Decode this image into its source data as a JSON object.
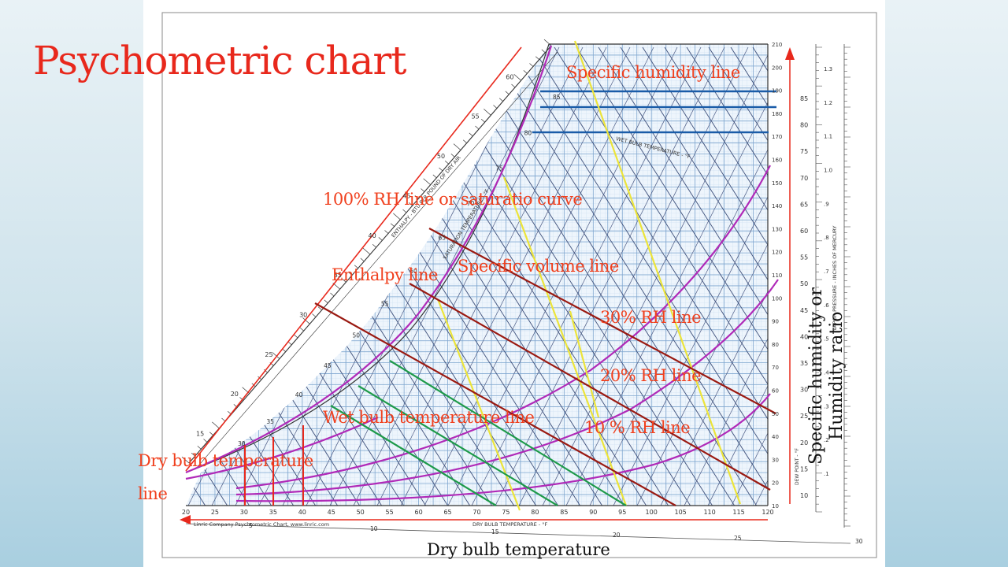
{
  "title": "Psychometric chart",
  "chart": {
    "scale_credit": "Linric Company Psychrometric Chart, www.linric.com",
    "dry_bulb_scale": "DRY BULB TEMPERATURE - °F",
    "enthalpy_scale": "ENTHALPY - BTU PER POUND OF DRY AIR",
    "saturation_scale": "SATURATION TEMPERATURE - °F",
    "wet_bulb_scale": "WET BULB TEMPERATURE - °F",
    "vapor_pressure_scale": "VAPOR PRESSURE - INCHES OF MERCURY",
    "dew_point_scale": "DEW POINT - °F",
    "dry_bulb_ticks": [
      "20",
      "25",
      "30",
      "35",
      "40",
      "45",
      "50",
      "55",
      "60",
      "65",
      "70",
      "75",
      "80",
      "85",
      "90",
      "95",
      "100",
      "105",
      "110",
      "115",
      "120"
    ],
    "right_ticks": [
      "10",
      "20",
      "30",
      "40",
      "50",
      "60",
      "70",
      "80",
      "90",
      "100",
      "110",
      "120",
      "130",
      "140",
      "150",
      "160",
      "170",
      "180",
      "190",
      "200",
      "210"
    ],
    "dew_ticks": [
      "10",
      "15",
      "20",
      "25",
      "30",
      "35",
      "40",
      "45",
      "50",
      "55",
      "60",
      "65",
      "70",
      "75",
      "80",
      "85"
    ],
    "vp_ticks": [
      ".1",
      ".2",
      ".3",
      ".4",
      ".5",
      ".6",
      ".7",
      ".8",
      ".9",
      "1.0",
      "1.1",
      "1.2",
      "1.3"
    ],
    "enthalpy_ticks": [
      "15",
      "20",
      "25",
      "30",
      "35",
      "40",
      "45",
      "50",
      "55",
      "60"
    ],
    "saturation_ticks": [
      "30",
      "35",
      "40",
      "45",
      "50",
      "55",
      "60",
      "65",
      "70",
      "75",
      "80",
      "85"
    ],
    "bottom_enthalpy_ticks": [
      "5",
      "10",
      "15",
      "20",
      "25",
      "30"
    ]
  },
  "annotations": {
    "specific_humidity_line": "Specific humidity  line",
    "rh100_line": "100% RH  line or saturatio curve",
    "enthalpy_line": "Enthalpy  line",
    "specific_volume_line": "Specific volume line",
    "rh30_line": "30% RH  line",
    "rh20_line": "20% RH  line",
    "rh10_line": "10 % RH  line",
    "wet_bulb_line": "Wet bulb temperature  line",
    "dry_bulb_line_1": "Dry bulb  temperature",
    "dry_bulb_line_2": "line"
  },
  "axis_labels": {
    "x": "Dry bulb temperature",
    "y_1": "Specific humidity or",
    "y_2": "Humidity ratio"
  },
  "colors": {
    "title": "#e8281c",
    "annotation": "#f0401e",
    "grid": "#8fb2d6",
    "rh_curves": "#b02ab8",
    "humidity_markers": "#1a5ca8",
    "volume_markers": "#e6e23a",
    "enthalpy_markers": "#9a1a12",
    "wet_bulb_markers": "#1e9a4a",
    "dry_bulb_markers": "#e8281c"
  }
}
